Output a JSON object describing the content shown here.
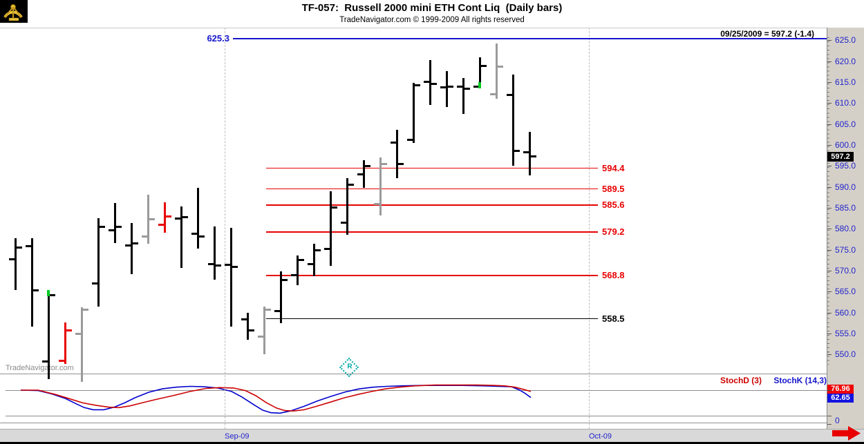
{
  "header": {
    "title": "TF-057:  Russell 2000 mini ETH Cont Liq  (Daily bars)",
    "subtitle": "TradeNavigator.com © 1999-2009 All rights reserved",
    "quote": "09/25/2009 = 597.2 (-1.4)"
  },
  "watermark": "TradeNavigator.com",
  "markers": {
    "rollover": {
      "label": "R"
    }
  },
  "price_axis": {
    "tick_labels": [
      "625.0",
      "620.0",
      "615.0",
      "610.0",
      "605.0",
      "600.0",
      "595.0",
      "590.0",
      "585.0",
      "580.0",
      "575.0",
      "570.0",
      "565.0",
      "560.0",
      "555.0",
      "550.0"
    ],
    "current_price": "597.2"
  },
  "levels": [
    {
      "label": "625.3",
      "price": 625.3,
      "color": "blue"
    },
    {
      "label": "594.4",
      "price": 594.4,
      "color": "red"
    },
    {
      "label": "589.5",
      "price": 589.5,
      "color": "red"
    },
    {
      "label": "585.6",
      "price": 585.6,
      "color": "red"
    },
    {
      "label": "579.2",
      "price": 579.2,
      "color": "red"
    },
    {
      "label": "568.8",
      "price": 568.8,
      "color": "red"
    },
    {
      "label": "558.5",
      "price": 558.5,
      "color": "black"
    }
  ],
  "chart_data": {
    "type": "ohlc-bar",
    "title": "TF-057: Russell 2000 mini ETH Cont Liq (Daily bars)",
    "ylim": [
      545.6,
      628.0
    ],
    "x_axis": [
      {
        "label": "Sep-09",
        "x": 325
      },
      {
        "label": "Oct-09",
        "x": 852
      }
    ],
    "bars": [
      {
        "color": "black",
        "o": 572.7,
        "h": 577.7,
        "l": 565.3,
        "c": 575.5
      },
      {
        "color": "black",
        "o": 575.9,
        "h": 577.7,
        "l": 556.6,
        "c": 565.3
      },
      {
        "color": "black",
        "o": 548.3,
        "h": 565.3,
        "l": 544.2,
        "c": 564.2,
        "green": 564.8
      },
      {
        "color": "red",
        "o": 548.5,
        "h": 557.6,
        "l": 547.7,
        "c": 555.8
      },
      {
        "color": "gray",
        "o": 554.9,
        "h": 561.2,
        "l": 543.4,
        "c": 560.7
      },
      {
        "color": "black",
        "o": 567.0,
        "h": 582.6,
        "l": 561.5,
        "c": 580.5
      },
      {
        "color": "black",
        "o": 579.7,
        "h": 586.1,
        "l": 576.5,
        "c": 580.4
      },
      {
        "color": "black",
        "o": 576.0,
        "h": 581.3,
        "l": 569.1,
        "c": 576.5
      },
      {
        "color": "gray",
        "o": 578.2,
        "h": 588.1,
        "l": 576.4,
        "c": 582.2
      },
      {
        "color": "red",
        "o": 581.0,
        "h": 586.3,
        "l": 579.0,
        "c": 583.0
      },
      {
        "color": "black",
        "o": 582.5,
        "h": 585.4,
        "l": 570.6,
        "c": 582.8
      },
      {
        "color": "black",
        "o": 578.8,
        "h": 589.7,
        "l": 575.2,
        "c": 578.2
      },
      {
        "color": "black",
        "o": 571.6,
        "h": 580.5,
        "l": 567.8,
        "c": 571.3
      },
      {
        "color": "black",
        "o": 571.4,
        "h": 580.2,
        "l": 556.6,
        "c": 570.9
      },
      {
        "color": "black",
        "o": 558.3,
        "h": 559.9,
        "l": 553.5,
        "c": 555.8
      },
      {
        "color": "gray",
        "o": 554.2,
        "h": 561.5,
        "l": 550.0,
        "c": 560.7
      },
      {
        "color": "black",
        "o": 560.4,
        "h": 569.8,
        "l": 557.4,
        "c": 567.8
      },
      {
        "color": "black",
        "o": 568.9,
        "h": 573.6,
        "l": 566.6,
        "c": 572.6
      },
      {
        "color": "black",
        "o": 571.6,
        "h": 576.5,
        "l": 568.6,
        "c": 574.9
      },
      {
        "color": "black",
        "o": 575.2,
        "h": 588.9,
        "l": 571.1,
        "c": 585.1
      },
      {
        "color": "black",
        "o": 581.5,
        "h": 592.0,
        "l": 578.5,
        "c": 590.5
      },
      {
        "color": "black",
        "o": 593.0,
        "h": 596.3,
        "l": 589.7,
        "c": 595.0
      },
      {
        "color": "gray",
        "o": 585.9,
        "h": 597.0,
        "l": 583.1,
        "c": 595.5
      },
      {
        "color": "black",
        "o": 600.5,
        "h": 603.6,
        "l": 592.0,
        "c": 595.5
      },
      {
        "color": "black",
        "o": 601.3,
        "h": 614.8,
        "l": 600.5,
        "c": 614.3
      },
      {
        "color": "black",
        "o": 615.1,
        "h": 620.2,
        "l": 609.5,
        "c": 614.5
      },
      {
        "color": "black",
        "o": 613.8,
        "h": 617.7,
        "l": 609.0,
        "c": 614.0
      },
      {
        "color": "black",
        "o": 614.0,
        "h": 615.9,
        "l": 607.4,
        "c": 613.5
      },
      {
        "color": "black",
        "o": 614.0,
        "h": 620.9,
        "l": 614.0,
        "c": 618.9,
        "green": 614.3
      },
      {
        "color": "gray",
        "o": 612.1,
        "h": 624.3,
        "l": 611.0,
        "c": 618.7
      },
      {
        "color": "black",
        "o": 612.0,
        "h": 616.8,
        "l": 595.0,
        "c": 598.6
      },
      {
        "color": "black",
        "o": 598.3,
        "h": 603.2,
        "l": 592.8,
        "c": 597.2
      }
    ],
    "stochastic": {
      "legend": [
        {
          "label": "StochD (3)",
          "color": "#cc0000"
        },
        {
          "label": "StochK (14,3)",
          "color": "#1414cc"
        }
      ],
      "last_values": {
        "stoch_d": "76.96",
        "stoch_k": "62.65"
      },
      "ref_lines": [
        80,
        20
      ],
      "zero_label": "0",
      "series": [
        {
          "name": "StochK",
          "color": "#0000cc",
          "points": [
            [
              30,
              80
            ],
            [
              55,
              79
            ],
            [
              75,
              71
            ],
            [
              95,
              60
            ],
            [
              110,
              48
            ],
            [
              122,
              39
            ],
            [
              135,
              34
            ],
            [
              150,
              34
            ],
            [
              165,
              40
            ],
            [
              180,
              50
            ],
            [
              195,
              62
            ],
            [
              215,
              75
            ],
            [
              235,
              83
            ],
            [
              255,
              87
            ],
            [
              275,
              89
            ],
            [
              295,
              88
            ],
            [
              315,
              85
            ],
            [
              335,
              77
            ],
            [
              350,
              64
            ],
            [
              365,
              48
            ],
            [
              380,
              33
            ],
            [
              392,
              27
            ],
            [
              405,
              26
            ],
            [
              420,
              31
            ],
            [
              440,
              42
            ],
            [
              460,
              55
            ],
            [
              480,
              66
            ],
            [
              500,
              76
            ],
            [
              520,
              83
            ],
            [
              540,
              87
            ],
            [
              560,
              89
            ],
            [
              580,
              90
            ],
            [
              610,
              91
            ],
            [
              640,
              91
            ],
            [
              670,
              91
            ],
            [
              700,
              90
            ],
            [
              720,
              89
            ],
            [
              740,
              88
            ],
            [
              752,
              80
            ],
            [
              760,
              72
            ],
            [
              768,
              62.65
            ]
          ]
        },
        {
          "name": "StochD",
          "color": "#cc0000",
          "points": [
            [
              30,
              80
            ],
            [
              55,
              80
            ],
            [
              80,
              70
            ],
            [
              100,
              60
            ],
            [
              120,
              50
            ],
            [
              140,
              44
            ],
            [
              158,
              40
            ],
            [
              172,
              39
            ],
            [
              188,
              43
            ],
            [
              205,
              50
            ],
            [
              225,
              58
            ],
            [
              250,
              67
            ],
            [
              275,
              77
            ],
            [
              298,
              84
            ],
            [
              318,
              86
            ],
            [
              338,
              85
            ],
            [
              355,
              79
            ],
            [
              370,
              67
            ],
            [
              385,
              51
            ],
            [
              400,
              38
            ],
            [
              412,
              32
            ],
            [
              425,
              31
            ],
            [
              440,
              34
            ],
            [
              458,
              42
            ],
            [
              478,
              52
            ],
            [
              498,
              62
            ],
            [
              518,
              70
            ],
            [
              538,
              77
            ],
            [
              558,
              83
            ],
            [
              578,
              87
            ],
            [
              600,
              90
            ],
            [
              630,
              92
            ],
            [
              660,
              92
            ],
            [
              690,
              92
            ],
            [
              715,
              91
            ],
            [
              730,
              90
            ],
            [
              745,
              87
            ],
            [
              757,
              82
            ],
            [
              768,
              76.96
            ]
          ]
        }
      ]
    }
  }
}
